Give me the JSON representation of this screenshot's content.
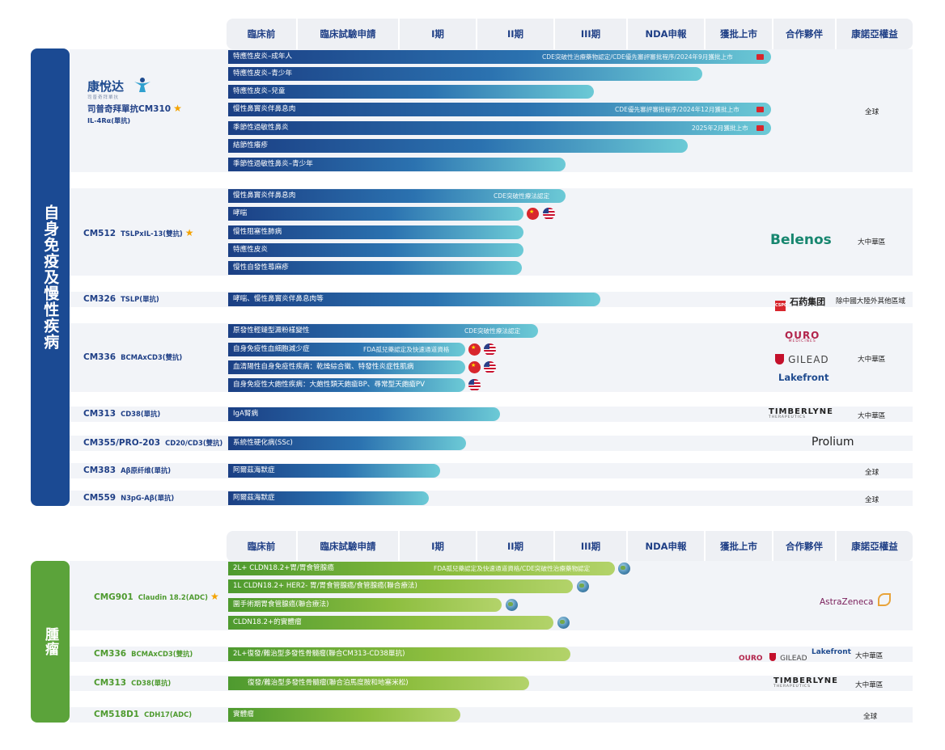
{
  "headers": [
    "臨床前",
    "臨床試驗申請",
    "I期",
    "II期",
    "III期",
    "NDA申報",
    "獲批上市",
    "合作夥伴",
    "康諾亞權益"
  ],
  "sections": {
    "immune": {
      "label": "自身免疫及慢性疾病",
      "color": "#1b4a93"
    },
    "oncology": {
      "label": "腫瘤",
      "color": "#5ba33a"
    }
  },
  "drugs": {
    "cm310": {
      "brand": "康悅达",
      "brand_sub": "司普奇拜單抗",
      "name": "司普奇拜單抗CM310",
      "target": "IL-4Rα(單抗)",
      "rights": "全球"
    },
    "cm512": {
      "name": "CM512",
      "target": "TSLPxIL-13(雙抗)",
      "partner": "Belenos",
      "rights": "大中華區"
    },
    "cm326": {
      "name": "CM326",
      "target": "TSLP(單抗)",
      "partner": "石药集团",
      "partner_mark": "CSPC",
      "rights": "除中國大陸外其他區域"
    },
    "cm336": {
      "name": "CM336",
      "target": "BCMAxCD3(雙抗)",
      "partners": [
        "OURO",
        "GILEAD",
        "Lakefront"
      ],
      "ouro_sub": "MEDICINES",
      "rights": "大中華區"
    },
    "cm313": {
      "name": "CM313",
      "target": "CD38(單抗)",
      "partner": "TIMBERLYNE",
      "partner_sub": "THERAPEUTICS",
      "rights": "大中華區"
    },
    "cm355": {
      "name": "CM355/PRO-203",
      "target": "CD20/CD3(雙抗)",
      "partner": "Prolium"
    },
    "cm383": {
      "name": "CM383",
      "target": "Aβ原纤维(單抗)",
      "rights": "全球"
    },
    "cm559": {
      "name": "CM559",
      "target": "N3pG-Aβ(單抗)",
      "rights": "全球"
    },
    "cmg901": {
      "name": "CMG901",
      "target": "Claudin 18.2(ADC)",
      "partner": "AstraZeneca",
      "rights": ""
    },
    "onc_cm336": {
      "name": "CM336",
      "target": "BCMAxCD3(雙抗)",
      "partners": [
        "OURO",
        "GILEAD",
        "Lakefront"
      ],
      "ouro_sub": "MEDICINES",
      "rights": "大中華區"
    },
    "onc_cm313": {
      "name": "CM313",
      "target": "CD38(單抗)",
      "partner": "TIMBERLYNE",
      "partner_sub": "THERAPEUTICS",
      "rights": "大中華區"
    },
    "cm518d1": {
      "name": "CM518D1",
      "target": "CDH17(ADC)",
      "rights": "全球"
    }
  },
  "bars": {
    "cm310": [
      {
        "label": "特應性皮炎–成年人",
        "note": "CDE突破性治療藥物認定/CDE優先審評審批程序/2024年9月獲批上市",
        "progress": "獲批上市"
      },
      {
        "label": "特應性皮炎–青少年",
        "progress": "NDA申報"
      },
      {
        "label": "特應性皮炎–兒童",
        "progress": "III期"
      },
      {
        "label": "慢性鼻竇炎伴鼻息肉",
        "note": "CDE優先審評審批程序/2024年12月獲批上市",
        "progress": "獲批上市"
      },
      {
        "label": "季節性過敏性鼻炎",
        "note": "2025年2月獲批上市",
        "progress": "獲批上市"
      },
      {
        "label": "結節性癢疹",
        "progress": "NDA申報"
      },
      {
        "label": "季節性過敏性鼻炎–青少年",
        "progress": "II期"
      }
    ],
    "cm512": [
      {
        "label": "慢性鼻竇炎伴鼻息肉",
        "note": "CDE突破性療法認定",
        "progress": "II期"
      },
      {
        "label": "哮喘",
        "progress": "II期"
      },
      {
        "label": "慢性阻塞性肺病",
        "progress": "II期"
      },
      {
        "label": "特應性皮炎",
        "progress": "II期"
      },
      {
        "label": "慢性自發性蕁麻疹",
        "progress": "II期"
      }
    ],
    "cm326": [
      {
        "label": "哮喘、慢性鼻竇炎伴鼻息肉等",
        "progress": "III期"
      }
    ],
    "cm336": [
      {
        "label": "原發性輕鏈型澱粉樣變性",
        "note": "CDE突破性療法認定",
        "progress": "II期"
      },
      {
        "label": "自身免疫性血細胞減少症",
        "note": "FDA孤兒藥認定及快速通道資格",
        "progress": "I期"
      },
      {
        "label": "血清陽性自身免疫性疾病：乾燥綜合徵、特發性炎症性肌病",
        "progress": "I期"
      },
      {
        "label": "自身免疫性大皰性疾病：大皰性類天皰瘡BP、尋常型天皰瘡PV",
        "progress": "I期"
      }
    ],
    "cm313": [
      {
        "label": "IgA腎病",
        "progress": "II期"
      }
    ],
    "cm355": [
      {
        "label": "系統性硬化病(SSc)",
        "progress": "I期"
      }
    ],
    "cm383": [
      {
        "label": "阿爾茲海默症",
        "progress": "I期"
      }
    ],
    "cm559": [
      {
        "label": "阿爾茲海默症",
        "progress": "I期"
      }
    ],
    "cmg901": [
      {
        "label": "2L+ CLDN18.2+胃/胃食管腺癌",
        "note": "FDA孤兒藥認定及快速通道資格/CDE突破性治療藥物認定",
        "progress": "III期"
      },
      {
        "label": "1L CLDN18.2+ HER2- 胃/胃食管腺癌/食管腺癌(聯合療法)",
        "progress": "III期"
      },
      {
        "label": "圍手術期胃食管腺癌(聯合療法)",
        "progress": "II期"
      },
      {
        "label": "CLDN18.2+的實體瘤",
        "progress": "III期"
      }
    ],
    "onc_cm336": [
      {
        "label": "2L+復發/難治型多發性骨髓瘤(聯合CM313-CD38單抗)",
        "progress": "III期"
      }
    ],
    "onc_cm313": [
      {
        "label": "復發/難治型多發性骨髓瘤(聯合泊馬度胺和地塞米松)",
        "progress": "II期"
      }
    ],
    "cm518d1": [
      {
        "label": "實體瘤",
        "progress": "I期"
      }
    ]
  }
}
